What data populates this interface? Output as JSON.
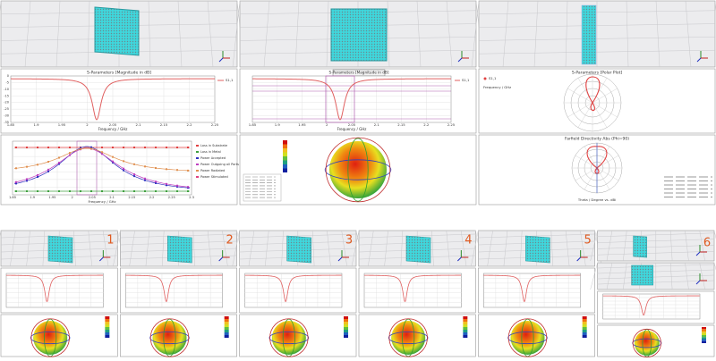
{
  "sparam_left": {
    "title": "S-Parameters [Magnitude in dB]",
    "legend": "S1,1",
    "x_label": "Frequency / GHz",
    "x_ticks": [
      "1.85",
      "1.9",
      "1.95",
      "2",
      "2.05",
      "2.1",
      "2.15",
      "2.2",
      "2.25"
    ],
    "y_ticks": [
      "0",
      "-5",
      "-10",
      "-15",
      "-20",
      "-25",
      "-30",
      "-35"
    ]
  },
  "sparam_mid": {
    "title": "S-Parameters [Magnitude in dB]",
    "legend": "S1,1",
    "x_label": "Frequency / GHz",
    "x_ticks": [
      "1.85",
      "1.9",
      "1.95",
      "2",
      "2.05",
      "2.1",
      "2.15",
      "2.2",
      "2.25"
    ]
  },
  "polar": {
    "title": "S-Parameters [Polar Plot]",
    "legend": "S1,1",
    "x_label": "Frequency / GHz"
  },
  "power": {
    "legend": [
      "Loss in Substrate",
      "Loss in Metal",
      "Power Accepted",
      "Power Outgoing all Ports",
      "Power Radiated",
      "Power Stimulated"
    ],
    "x_label": "Frequency / GHz",
    "x_ticks": [
      "1.85",
      "1.9",
      "1.95",
      "2",
      "2.05",
      "2.1",
      "2.15",
      "2.2",
      "2.25",
      "2.3"
    ]
  },
  "farfield": {
    "title": "Farfield Directivity Abs (Phi=90)",
    "x_label": "Theta / Degree vs. dBi"
  },
  "thumbnails": [
    "1",
    "2",
    "3",
    "4",
    "5",
    "6"
  ]
}
